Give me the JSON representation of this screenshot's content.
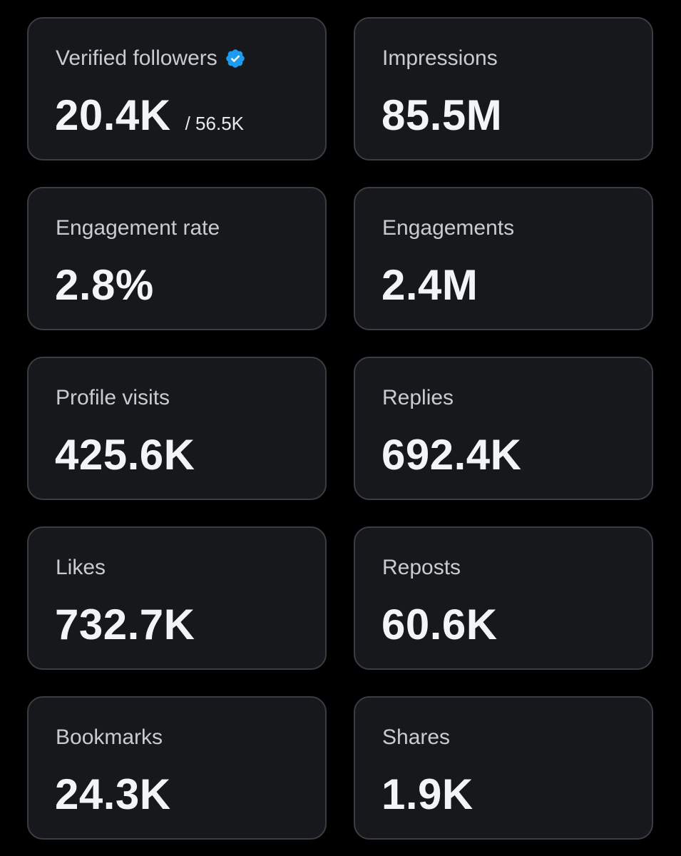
{
  "colors": {
    "background": "#000000",
    "card_background": "#16181c",
    "card_border": "#3a3e44",
    "verified_badge": "#1d9bf0"
  },
  "cards": [
    {
      "label": "Verified followers",
      "value": "20.4K",
      "total": "/ 56.5K",
      "icon": "verified-badge-icon"
    },
    {
      "label": "Impressions",
      "value": "85.5M"
    },
    {
      "label": "Engagement rate",
      "value": "2.8%"
    },
    {
      "label": "Engagements",
      "value": "2.4M"
    },
    {
      "label": "Profile visits",
      "value": "425.6K"
    },
    {
      "label": "Replies",
      "value": "692.4K"
    },
    {
      "label": "Likes",
      "value": "732.7K"
    },
    {
      "label": "Reposts",
      "value": "60.6K"
    },
    {
      "label": "Bookmarks",
      "value": "24.3K"
    },
    {
      "label": "Shares",
      "value": "1.9K"
    }
  ]
}
